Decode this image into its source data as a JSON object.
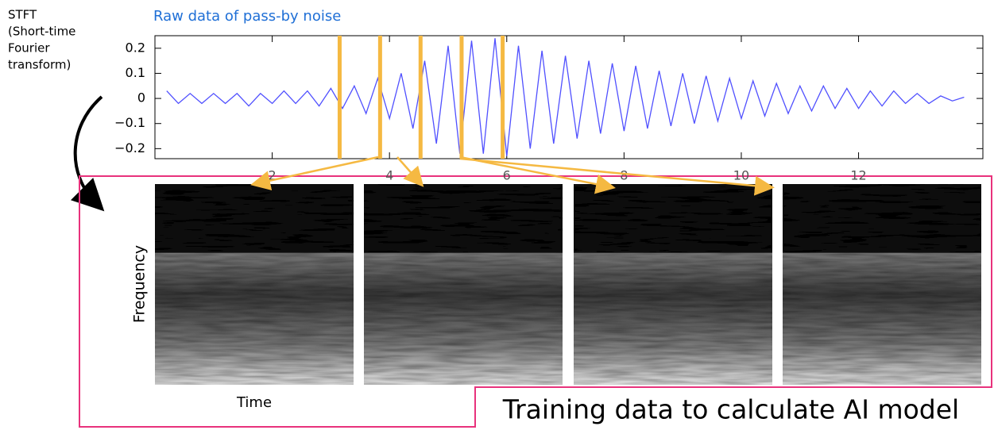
{
  "labels": {
    "stft": [
      "STFT",
      "(Short-time",
      "Fourier",
      "transform)"
    ],
    "y_axis": "Frequency",
    "x_axis": "Time",
    "caption": "Training data to calculate AI model"
  },
  "chart_data": {
    "type": "line",
    "title": "Raw data of pass-by noise",
    "color": "#5050ff",
    "x": [
      0.2,
      0.4,
      0.6,
      0.8,
      1.0,
      1.2,
      1.4,
      1.6,
      1.8,
      2.0,
      2.2,
      2.4,
      2.6,
      2.8,
      3.0,
      3.2,
      3.4,
      3.6,
      3.8,
      4.0,
      4.2,
      4.4,
      4.6,
      4.8,
      5.0,
      5.2,
      5.4,
      5.6,
      5.8,
      6.0,
      6.2,
      6.4,
      6.6,
      6.8,
      7.0,
      7.2,
      7.4,
      7.6,
      7.8,
      8.0,
      8.2,
      8.4,
      8.6,
      8.8,
      9.0,
      9.2,
      9.4,
      9.6,
      9.8,
      10.0,
      10.2,
      10.4,
      10.6,
      10.8,
      11.0,
      11.2,
      11.4,
      11.6,
      11.8,
      12.0,
      12.2,
      12.4,
      12.6,
      12.8,
      13.0,
      13.2,
      13.4,
      13.6,
      13.8
    ],
    "values": [
      0.03,
      -0.02,
      0.02,
      -0.02,
      0.02,
      -0.02,
      0.02,
      -0.03,
      0.02,
      -0.02,
      0.03,
      -0.02,
      0.03,
      -0.03,
      0.04,
      -0.04,
      0.05,
      -0.06,
      0.08,
      -0.08,
      0.1,
      -0.12,
      0.15,
      -0.18,
      0.21,
      -0.22,
      0.23,
      -0.22,
      0.24,
      -0.23,
      0.21,
      -0.2,
      0.19,
      -0.18,
      0.17,
      -0.16,
      0.15,
      -0.14,
      0.14,
      -0.13,
      0.13,
      -0.12,
      0.11,
      -0.11,
      0.1,
      -0.1,
      0.09,
      -0.09,
      0.08,
      -0.08,
      0.07,
      -0.07,
      0.06,
      -0.06,
      0.05,
      -0.05,
      0.05,
      -0.04,
      0.04,
      -0.04,
      0.03,
      -0.03,
      0.03,
      -0.02,
      0.02,
      -0.02,
      0.01,
      -0.01,
      0.005
    ],
    "markers": [
      3.15,
      3.84,
      4.53,
      5.23,
      5.93
    ],
    "marker_color": "#f5b942",
    "xlim": [
      0,
      14.12
    ],
    "ylim": [
      -0.24,
      0.25
    ],
    "xticks": [
      2,
      4,
      6,
      8,
      10,
      12
    ],
    "yticks": [
      {
        "value": -0.2,
        "label": "−0.2"
      },
      {
        "value": -0.1,
        "label": "−0.1"
      },
      0,
      0.1,
      0.2
    ]
  }
}
